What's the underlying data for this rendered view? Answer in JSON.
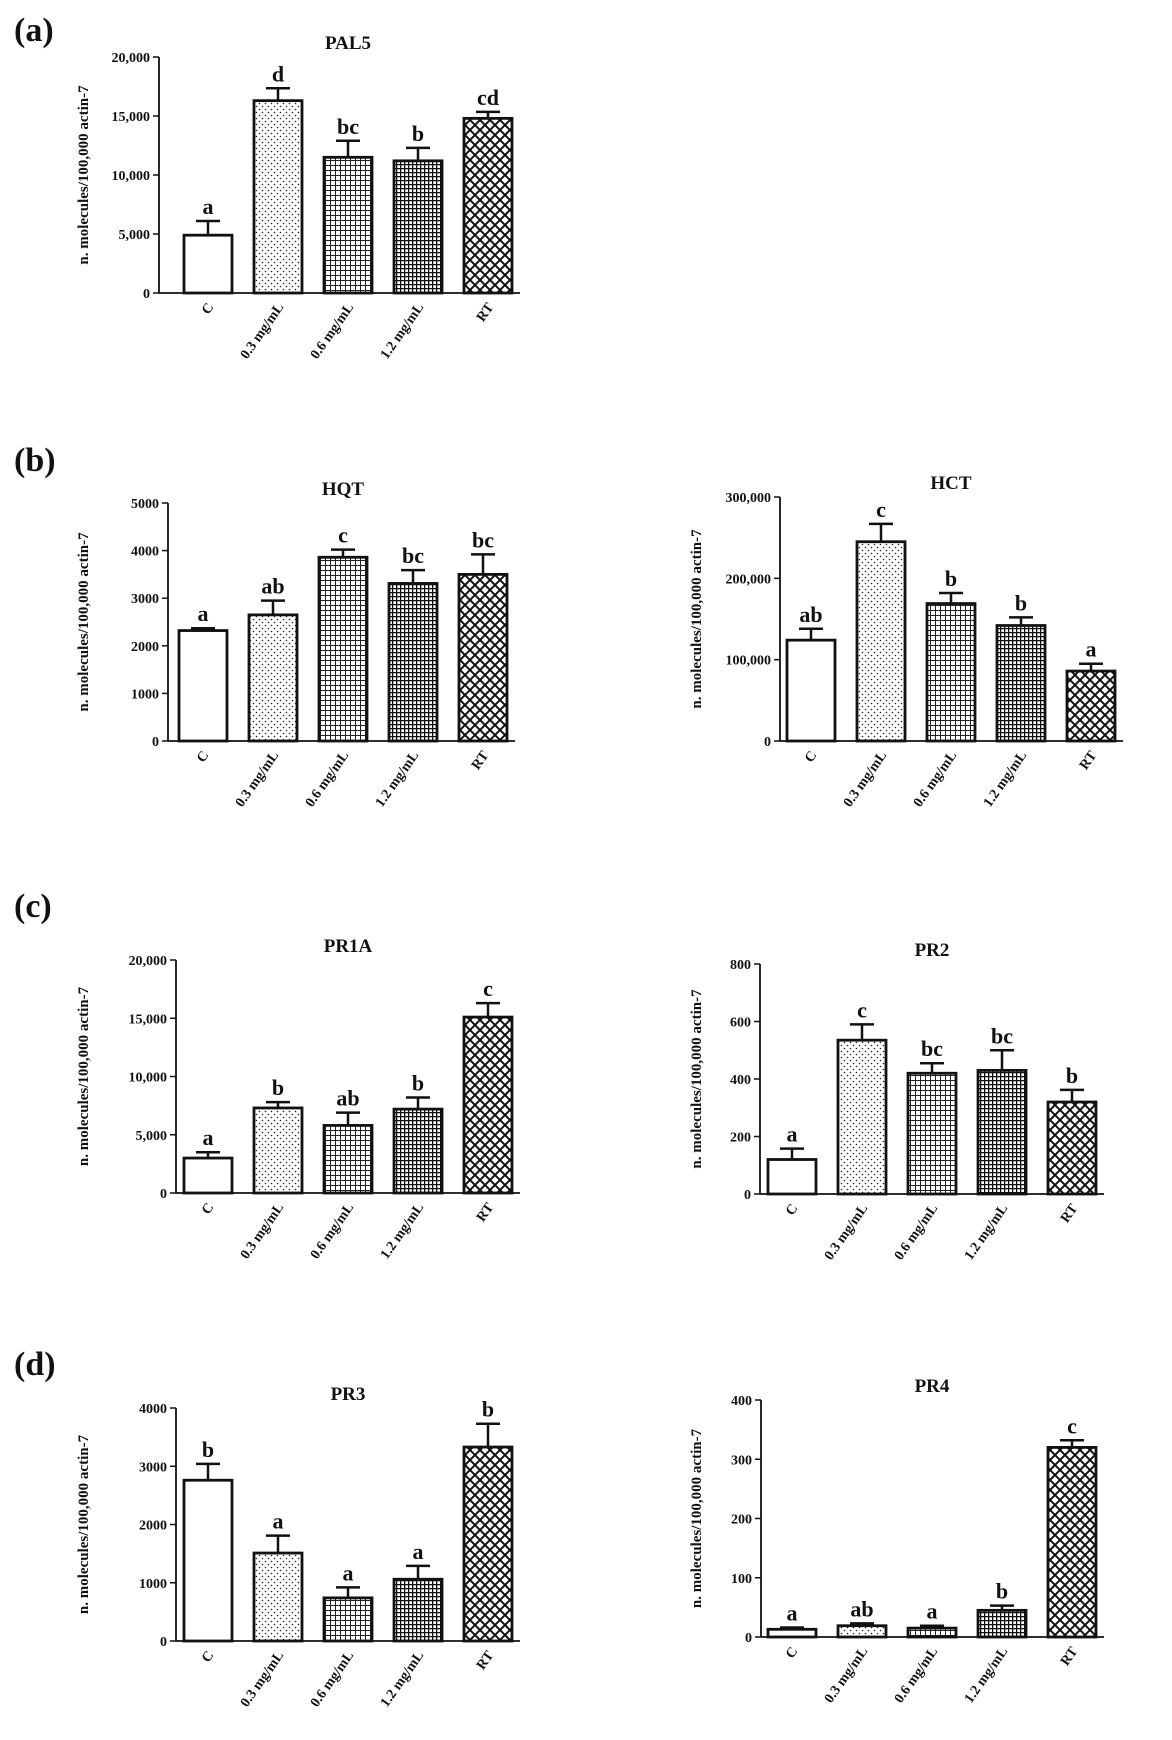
{
  "panel_labels": [
    "(a)",
    "(b)",
    "(c)",
    "(d)"
  ],
  "chart_data": [
    {
      "type": "bar",
      "panel": "(a)",
      "title": "PAL5",
      "ylabel": "n. molecules/100,000 actin-7",
      "xlabel": "",
      "categories": [
        "C",
        "0.3 mg/mL",
        "0.6 mg/mL",
        "1.2 mg/mL",
        "RT"
      ],
      "values": [
        4900,
        16300,
        11500,
        11200,
        14800
      ],
      "errors": [
        1200,
        1050,
        1400,
        1100,
        550
      ],
      "letters": [
        "a",
        "d",
        "bc",
        "b",
        "cd"
      ],
      "ylim": [
        0,
        20000
      ],
      "yticks": [
        0,
        5000,
        10000,
        15000,
        20000
      ],
      "yticklabels": [
        "0",
        "5,000",
        "10,000",
        "15,000",
        "20,000"
      ]
    },
    {
      "type": "bar",
      "panel": "(b)",
      "title": "HQT",
      "ylabel": "n. molecules/100,000 actin-7",
      "xlabel": "",
      "categories": [
        "C",
        "0.3 mg/mL",
        "0.6 mg/mL",
        "1.2 mg/mL",
        "RT"
      ],
      "values": [
        2320,
        2650,
        3860,
        3310,
        3500
      ],
      "errors": [
        50,
        300,
        160,
        280,
        420
      ],
      "letters": [
        "a",
        "ab",
        "c",
        "bc",
        "bc"
      ],
      "ylim": [
        0,
        5000
      ],
      "yticks": [
        0,
        1000,
        2000,
        3000,
        4000,
        5000
      ],
      "yticklabels": [
        "0",
        "1000",
        "2000",
        "3000",
        "4000",
        "5000"
      ]
    },
    {
      "type": "bar",
      "panel": "(b)",
      "title": "HCT",
      "ylabel": "n. molecules/100,000 actin-7",
      "xlabel": "",
      "categories": [
        "C",
        "0.3 mg/mL",
        "0.6 mg/mL",
        "1.2 mg/mL",
        "RT"
      ],
      "values": [
        124000,
        245000,
        169000,
        142000,
        86000
      ],
      "errors": [
        14000,
        22000,
        13000,
        10000,
        9000
      ],
      "letters": [
        "ab",
        "c",
        "b",
        "b",
        "a"
      ],
      "ylim": [
        0,
        300000
      ],
      "yticks": [
        0,
        100000,
        200000,
        300000
      ],
      "yticklabels": [
        "0",
        "100,000",
        "200,000",
        "300,000"
      ]
    },
    {
      "type": "bar",
      "panel": "(c)",
      "title": "PR1A",
      "ylabel": "n. molecules/100,000 actin-7",
      "xlabel": "",
      "categories": [
        "C",
        "0.3 mg/mL",
        "0.6 mg/mL",
        "1.2 mg/mL",
        "RT"
      ],
      "values": [
        3000,
        7300,
        5800,
        7200,
        15100
      ],
      "errors": [
        500,
        500,
        1100,
        1000,
        1200
      ],
      "letters": [
        "a",
        "b",
        "ab",
        "b",
        "c"
      ],
      "ylim": [
        0,
        20000
      ],
      "yticks": [
        0,
        5000,
        10000,
        15000,
        20000
      ],
      "yticklabels": [
        "0",
        "5,000",
        "10,000",
        "15,000",
        "20,000"
      ]
    },
    {
      "type": "bar",
      "panel": "(c)",
      "title": "PR2",
      "ylabel": "n. molecules/100,000 actin-7",
      "xlabel": "",
      "categories": [
        "C",
        "0.3 mg/mL",
        "0.6 mg/mL",
        "1.2 mg/mL",
        "RT"
      ],
      "values": [
        120,
        535,
        420,
        430,
        320
      ],
      "errors": [
        38,
        55,
        35,
        70,
        42
      ],
      "letters": [
        "a",
        "c",
        "bc",
        "bc",
        "b"
      ],
      "ylim": [
        0,
        800
      ],
      "yticks": [
        0,
        200,
        400,
        600,
        800
      ],
      "yticklabels": [
        "0",
        "200",
        "400",
        "600",
        "800"
      ]
    },
    {
      "type": "bar",
      "panel": "(d)",
      "title": "PR3",
      "ylabel": "n. molecules/100,000 actin-7",
      "xlabel": "",
      "categories": [
        "C",
        "0.3 mg/mL",
        "0.6 mg/mL",
        "1.2 mg/mL",
        "RT"
      ],
      "values": [
        2760,
        1510,
        740,
        1060,
        3330
      ],
      "errors": [
        280,
        300,
        180,
        230,
        400
      ],
      "letters": [
        "b",
        "a",
        "a",
        "a",
        "b"
      ],
      "ylim": [
        0,
        4000
      ],
      "yticks": [
        0,
        1000,
        2000,
        3000,
        4000
      ],
      "yticklabels": [
        "0",
        "1000",
        "2000",
        "3000",
        "4000"
      ]
    },
    {
      "type": "bar",
      "panel": "(d)",
      "title": "PR4",
      "ylabel": "n. molecules/100,000 actin-7",
      "xlabel": "",
      "categories": [
        "C",
        "0.3 mg/mL",
        "0.6 mg/mL",
        "1.2 mg/mL",
        "RT"
      ],
      "values": [
        13,
        19,
        15,
        45,
        320
      ],
      "errors": [
        3,
        4,
        4,
        8,
        12
      ],
      "letters": [
        "a",
        "ab",
        "a",
        "b",
        "c"
      ],
      "ylim": [
        0,
        400
      ],
      "yticks": [
        0,
        100,
        200,
        300,
        400
      ],
      "yticklabels": [
        "0",
        "100",
        "200",
        "300",
        "400"
      ]
    }
  ]
}
